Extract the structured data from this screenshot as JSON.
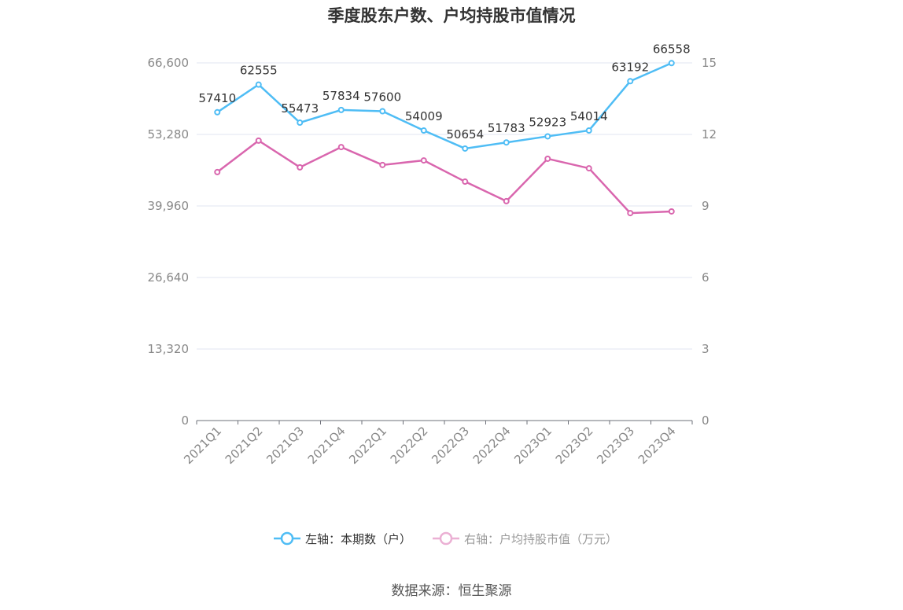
{
  "chart_data": {
    "type": "line",
    "title": "季度股东户数、户均持股市值情况",
    "categories": [
      "2021Q1",
      "2021Q2",
      "2021Q3",
      "2021Q4",
      "2022Q1",
      "2022Q2",
      "2022Q3",
      "2022Q4",
      "2023Q1",
      "2023Q2",
      "2023Q3",
      "2023Q4"
    ],
    "series": [
      {
        "name": "左轴：本期数（户）",
        "axis": "left",
        "color": "#4FBDF5",
        "values": [
          57410,
          62555,
          55473,
          57834,
          57600,
          54009,
          50654,
          51783,
          52923,
          54014,
          63192,
          66558
        ],
        "labels_shown": true
      },
      {
        "name": "右轴：户均持股市值（万元）",
        "axis": "right",
        "color": "#D966AE",
        "legend_color": "#EBB0D4",
        "values": [
          10.42,
          11.74,
          10.62,
          11.47,
          10.72,
          10.91,
          10.02,
          9.2,
          10.98,
          10.58,
          8.7,
          8.77
        ],
        "labels_shown": false
      }
    ],
    "left_axis": {
      "ylim": [
        0,
        66600
      ],
      "ticks": [
        "0",
        "13,320",
        "26,640",
        "39,960",
        "53,280",
        "66,600"
      ]
    },
    "right_axis": {
      "ylim": [
        0,
        15
      ],
      "ticks": [
        "0",
        "3",
        "6",
        "9",
        "12",
        "15"
      ]
    },
    "grid": true,
    "legend_position": "bottom"
  },
  "source": "数据来源：恒生聚源"
}
